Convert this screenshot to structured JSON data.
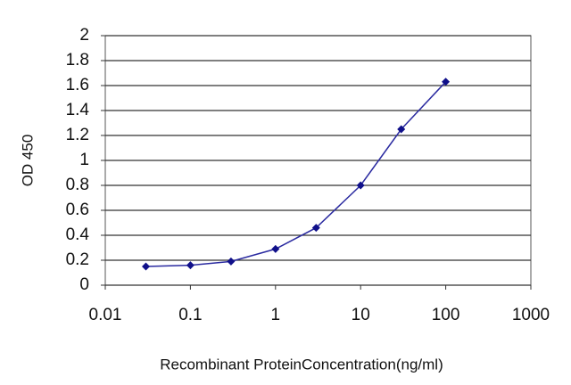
{
  "chart_data": {
    "type": "line",
    "x_label": "Recombinant ProteinConcentration(ng/ml)",
    "y_label": "OD 450",
    "x": [
      0.03,
      0.1,
      0.3,
      1,
      3,
      10,
      30,
      100
    ],
    "series": [
      {
        "color": "#2a2aa0",
        "values": [
          0.15,
          0.16,
          0.19,
          0.29,
          0.46,
          0.8,
          1.25,
          1.63
        ]
      }
    ],
    "xlog": true,
    "xlim": [
      0.01,
      1000
    ],
    "xticks": [
      0.01,
      0.1,
      1,
      10,
      100,
      1000
    ],
    "ylim": [
      0,
      2
    ],
    "yticks": [
      0,
      0.2,
      0.4,
      0.6,
      0.8,
      1,
      1.2,
      1.4,
      1.6,
      1.8,
      2
    ],
    "grid": true
  }
}
